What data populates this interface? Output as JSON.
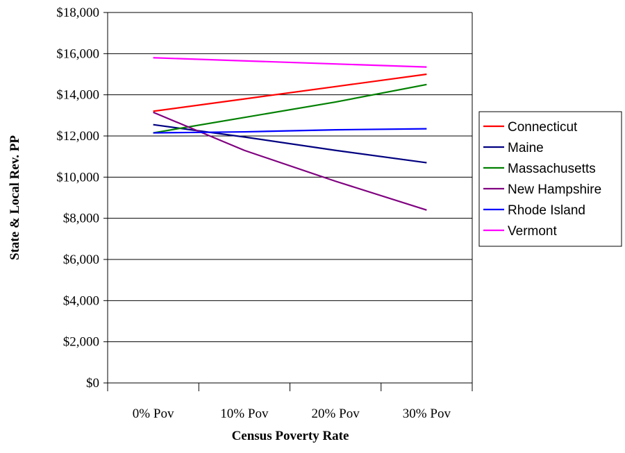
{
  "chart_data": {
    "type": "line",
    "title": "",
    "xlabel": "Census Poverty Rate",
    "ylabel": "State & Local Rev. PP",
    "categories": [
      "0% Pov",
      "10% Pov",
      "20% Pov",
      "30% Pov"
    ],
    "ylim": [
      0,
      18000
    ],
    "yticks": [
      0,
      2000,
      4000,
      6000,
      8000,
      10000,
      12000,
      14000,
      16000,
      18000
    ],
    "ytick_labels": [
      "$0",
      "$2,000",
      "$4,000",
      "$6,000",
      "$8,000",
      "$10,000",
      "$12,000",
      "$14,000",
      "$16,000",
      "$18,000"
    ],
    "grid": true,
    "legend_position": "right",
    "series": [
      {
        "name": "Connecticut",
        "color": "#ff0000",
        "values": [
          13200,
          13800,
          14400,
          15000
        ]
      },
      {
        "name": "Maine",
        "color": "#000080",
        "values": [
          12550,
          11950,
          11300,
          10700
        ]
      },
      {
        "name": "Massachusetts",
        "color": "#008000",
        "values": [
          12150,
          12900,
          13650,
          14500
        ]
      },
      {
        "name": "New Hampshire",
        "color": "#800080",
        "values": [
          13150,
          11300,
          9800,
          8400
        ]
      },
      {
        "name": "Rhode Island",
        "color": "#0000ff",
        "values": [
          12150,
          12200,
          12300,
          12350
        ]
      },
      {
        "name": "Vermont",
        "color": "#ff00ff",
        "values": [
          15800,
          15650,
          15500,
          15350
        ]
      }
    ]
  }
}
